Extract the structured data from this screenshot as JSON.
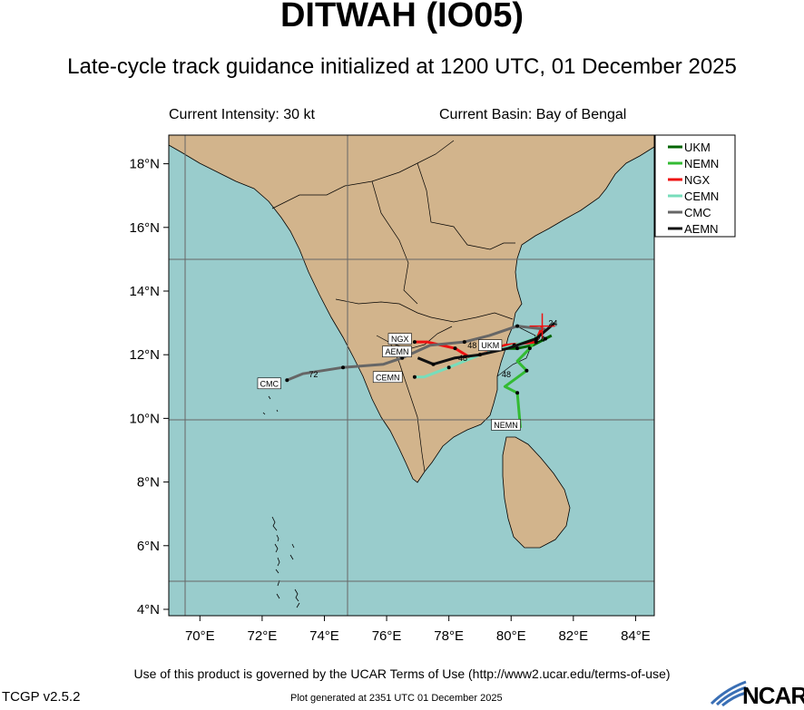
{
  "title": "DITWAH (IO05)",
  "subtitle": "Late-cycle track guidance initialized at 1200 UTC, 01 December 2025",
  "current_intensity": "Current Intensity: 30 kt",
  "current_basin": "Current Basin: Bay of Bengal",
  "terms": "Use of this product is governed by the UCAR Terms of Use (http://www2.ucar.edu/terms-of-use)",
  "version": "TCGP v2.5.2",
  "generated": "Plot generated at 2351 UTC   01 December 2025",
  "logo_text": "NCAR",
  "colors": {
    "ocean": "#99cccc",
    "land": "#d2b48c",
    "grid": "#666666"
  },
  "axes": {
    "lon_range": [
      69.0,
      84.6
    ],
    "lat_range": [
      3.8,
      18.9
    ],
    "lon_ticks": [
      70,
      72,
      74,
      76,
      78,
      80,
      82,
      84
    ],
    "lon_labels": [
      "70°E",
      "72°E",
      "74°E",
      "76°E",
      "78°E",
      "80°E",
      "82°E",
      "84°E"
    ],
    "lat_ticks": [
      4,
      6,
      8,
      10,
      12,
      14,
      16,
      18
    ],
    "lat_labels": [
      "4°N",
      "6°N",
      "8°N",
      "10°N",
      "12°N",
      "14°N",
      "16°N",
      "18°N"
    ],
    "grid_lons": [
      69.5,
      75
    ],
    "grid_lats": [
      5,
      10,
      15
    ]
  },
  "legend": [
    {
      "name": "UKM",
      "color": "#006400"
    },
    {
      "name": "NEMN",
      "color": "#33bb33"
    },
    {
      "name": "NGX",
      "color": "#ee1111"
    },
    {
      "name": "CEMN",
      "color": "#77ddbb"
    },
    {
      "name": "CMC",
      "color": "#666666"
    },
    {
      "name": "AEMN",
      "color": "#111111"
    }
  ],
  "chart_data": {
    "type": "map",
    "storm_position": {
      "lon": 81.0,
      "lat": 12.9
    },
    "series": [
      {
        "name": "UKM",
        "color": "#006400",
        "points": [
          [
            81.3,
            12.6
          ],
          [
            81.1,
            12.5
          ],
          [
            80.7,
            12.3
          ],
          [
            80.2,
            12.2
          ],
          [
            79.6,
            12.2
          ]
        ]
      },
      {
        "name": "NEMN",
        "color": "#33bb33",
        "points": [
          [
            81.0,
            12.8
          ],
          [
            80.6,
            12.2
          ],
          [
            80.2,
            11.8
          ],
          [
            80.5,
            11.5
          ],
          [
            79.8,
            11.0
          ],
          [
            80.2,
            10.8
          ],
          [
            80.3,
            9.7
          ]
        ]
      },
      {
        "name": "NGX",
        "color": "#ee1111",
        "points": [
          [
            81.0,
            12.9
          ],
          [
            80.8,
            12.4
          ],
          [
            79.8,
            12.3
          ],
          [
            79.3,
            12.1
          ],
          [
            78.7,
            11.9
          ],
          [
            78.2,
            12.2
          ],
          [
            77.3,
            12.4
          ],
          [
            76.9,
            12.4
          ]
        ]
      },
      {
        "name": "CEMN",
        "color": "#77ddbb",
        "points": [
          [
            81.0,
            12.6
          ],
          [
            80.1,
            12.3
          ],
          [
            79.0,
            12.0
          ],
          [
            78.0,
            11.6
          ],
          [
            77.2,
            11.3
          ],
          [
            76.9,
            11.3
          ]
        ]
      },
      {
        "name": "CMC",
        "color": "#666666",
        "points": [
          [
            81.1,
            12.8
          ],
          [
            80.2,
            12.9
          ],
          [
            79.3,
            12.6
          ],
          [
            78.5,
            12.4
          ],
          [
            77.4,
            12.3
          ],
          [
            76.5,
            11.9
          ],
          [
            75.9,
            11.7
          ],
          [
            74.6,
            11.6
          ],
          [
            73.3,
            11.4
          ],
          [
            72.8,
            11.2
          ]
        ]
      },
      {
        "name": "AEMN",
        "color": "#111111",
        "points": [
          [
            81.4,
            13.0
          ],
          [
            80.8,
            12.5
          ],
          [
            79.9,
            12.2
          ],
          [
            79.0,
            12.0
          ],
          [
            78.2,
            11.9
          ],
          [
            77.5,
            11.7
          ],
          [
            77.0,
            11.9
          ]
        ]
      }
    ],
    "hour_labels": [
      {
        "text": "24",
        "lon": 80.8,
        "lat": 12.4
      },
      {
        "text": "24",
        "lon": 81.2,
        "lat": 12.9
      },
      {
        "text": "48",
        "lon": 78.6,
        "lat": 12.2
      },
      {
        "text": "48",
        "lon": 78.3,
        "lat": 11.8
      },
      {
        "text": "48",
        "lon": 79.7,
        "lat": 11.3
      },
      {
        "text": "72",
        "lon": 73.5,
        "lat": 11.3
      }
    ],
    "end_labels": [
      {
        "text": "NGX",
        "lon": 76.8,
        "lat": 12.5
      },
      {
        "text": "AEMN",
        "lon": 76.8,
        "lat": 12.1
      },
      {
        "text": "CEMN",
        "lon": 76.5,
        "lat": 11.3
      },
      {
        "text": "UKM",
        "lon": 79.7,
        "lat": 12.3
      },
      {
        "text": "CMC",
        "lon": 72.6,
        "lat": 11.1
      },
      {
        "text": "NEMN",
        "lon": 80.3,
        "lat": 9.8
      }
    ]
  }
}
